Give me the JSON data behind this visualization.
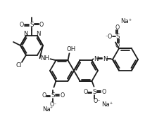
{
  "bg": "#ffffff",
  "lc": "#1c1c1c",
  "lw": 1.3,
  "fs": 6.2,
  "figsize": [
    2.06,
    1.93
  ],
  "dpi": 100,
  "xlim": [
    0,
    206
  ],
  "ylim": [
    0,
    193
  ]
}
